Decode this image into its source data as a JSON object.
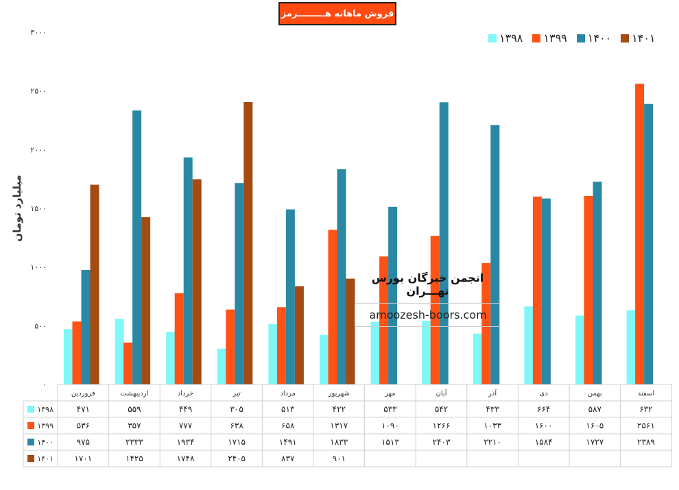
{
  "chart_data": {
    "type": "bar",
    "title": "فروش ماهانه هـــــــــرمز",
    "xlabel": "",
    "ylabel": "میلیارد تومان",
    "ylim": [
      0,
      3000
    ],
    "yticks": [
      "۰",
      "۵۰۰",
      "۱۰۰۰",
      "۱۵۰۰",
      "۲۰۰۰",
      "۲۵۰۰",
      "۳۰۰۰"
    ],
    "ytick_values": [
      0,
      500,
      1000,
      1500,
      2000,
      2500,
      3000
    ],
    "legend_position": "top-right",
    "categories": [
      "فروردین",
      "اردیبهشت",
      "خرداد",
      "تیر",
      "مرداد",
      "شهریور",
      "مهر",
      "آبان",
      "آذر",
      "دی",
      "بهمن",
      "اسفند"
    ],
    "series": [
      {
        "name": "۱۳۹۸",
        "color": "#7FF7F7",
        "values": [
          471,
          559,
          449,
          305,
          513,
          422,
          533,
          542,
          433,
          664,
          587,
          632
        ],
        "labels": [
          "۴۷۱",
          "۵۵۹",
          "۴۴۹",
          "۳۰۵",
          "۵۱۳",
          "۴۲۲",
          "۵۳۳",
          "۵۴۲",
          "۴۳۳",
          "۶۶۴",
          "۵۸۷",
          "۶۳۲"
        ]
      },
      {
        "name": "۱۳۹۹",
        "color": "#FF5215",
        "values": [
          536,
          357,
          777,
          638,
          658,
          1317,
          1090,
          1266,
          1033,
          1600,
          1605,
          2561
        ],
        "labels": [
          "۵۳۶",
          "۳۵۷",
          "۷۷۷",
          "۶۳۸",
          "۶۵۸",
          "۱۳۱۷",
          "۱۰۹۰",
          "۱۲۶۶",
          "۱۰۳۳",
          "۱۶۰۰",
          "۱۶۰۵",
          "۲۵۶۱"
        ]
      },
      {
        "name": "۱۴۰۰",
        "color": "#2B88A4",
        "values": [
          975,
          2333,
          1934,
          1715,
          1491,
          1833,
          1513,
          2403,
          2210,
          1584,
          1727,
          2389
        ],
        "labels": [
          "۹۷۵",
          "۲۳۳۳",
          "۱۹۳۴",
          "۱۷۱۵",
          "۱۴۹۱",
          "۱۸۳۳",
          "۱۵۱۳",
          "۲۴۰۳",
          "۲۲۱۰",
          "۱۵۸۴",
          "۱۷۲۷",
          "۲۳۸۹"
        ]
      },
      {
        "name": "۱۴۰۱",
        "color": "#A34B13",
        "values": [
          1701,
          1425,
          1748,
          2405,
          837,
          901,
          null,
          null,
          null,
          null,
          null,
          null
        ],
        "labels": [
          "۱۷۰۱",
          "۱۴۲۵",
          "۱۷۴۸",
          "۲۴۰۵",
          "۸۳۷",
          "۹۰۱",
          "",
          "",
          "",
          "",
          "",
          ""
        ]
      }
    ]
  },
  "watermark": {
    "line1": "انجمن خبرگان بورس تهـــران",
    "line2": "amoozesh-boors.com"
  }
}
